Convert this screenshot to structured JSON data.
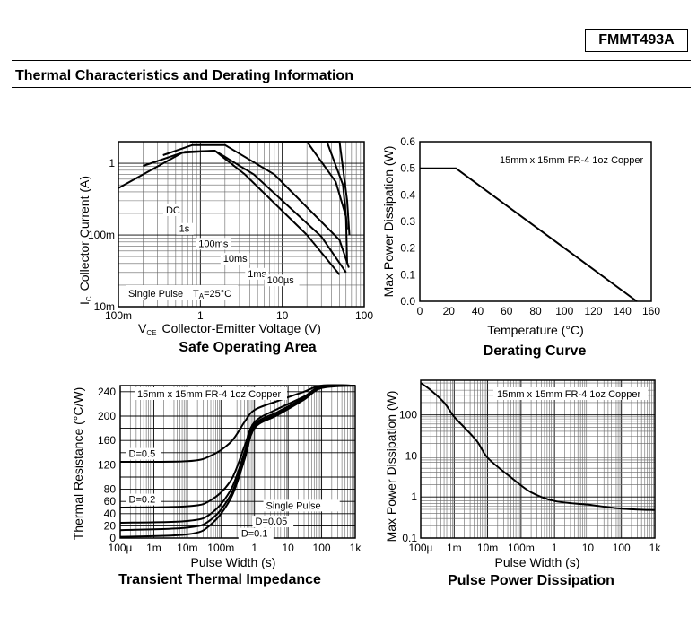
{
  "header": {
    "part_number": "FMMT493A",
    "section_title": "Thermal Characteristics and Derating Information"
  },
  "colors": {
    "line": "#000000",
    "grid": "#000000",
    "grid_minor": "#999999"
  },
  "chart_data": [
    {
      "type": "line",
      "title": "Safe Operating Area",
      "xlabel": "Collector-Emitter Voltage (V)",
      "xlabel_prefix": "V",
      "xlabel_sub": "CE",
      "ylabel": "Collector Current (A)",
      "ylabel_prefix": "I",
      "ylabel_sub": "C",
      "xscale": "log",
      "yscale": "log",
      "xlim": [
        0.1,
        100
      ],
      "ylim": [
        0.01,
        2
      ],
      "xticks": [
        {
          "v": 0.1,
          "l": "100m"
        },
        {
          "v": 1,
          "l": "1"
        },
        {
          "v": 10,
          "l": "10"
        },
        {
          "v": 100,
          "l": "100"
        }
      ],
      "yticks": [
        {
          "v": 0.01,
          "l": "10m"
        },
        {
          "v": 0.1,
          "l": "100m"
        },
        {
          "v": 1,
          "l": "1"
        }
      ],
      "annotation_left": "Single Pulse",
      "annotation_t": "T",
      "annotation_tsub": "A",
      "annotation_tval": "=25°C",
      "series": [
        {
          "label": "DC",
          "label_at": [
            0.38,
            0.2
          ],
          "points": [
            [
              0.1,
              0.45
            ],
            [
              0.6,
              1.4
            ],
            [
              1.5,
              1.5
            ],
            [
              3.5,
              0.7
            ],
            [
              20,
              0.1
            ],
            [
              50,
              0.028
            ]
          ]
        },
        {
          "label": "1s",
          "label_at": [
            0.55,
            0.11
          ],
          "points": [
            [
              0.2,
              0.92
            ],
            [
              0.65,
              1.45
            ],
            [
              1.5,
              1.5
            ],
            [
              4.5,
              0.7
            ],
            [
              30,
              0.095
            ],
            [
              60,
              0.03
            ]
          ]
        },
        {
          "label": "100ms",
          "label_at": [
            0.95,
            0.068
          ],
          "points": [
            [
              0.35,
              1.3
            ],
            [
              0.8,
              1.8
            ],
            [
              2,
              1.8
            ],
            [
              8,
              0.7
            ],
            [
              50,
              0.085
            ],
            [
              65,
              0.035
            ]
          ]
        },
        {
          "label": "10ms",
          "label_at": [
            1.9,
            0.042
          ],
          "points": [
            [
              0.75,
              2
            ],
            [
              20,
              2
            ],
            [
              45,
              0.55
            ],
            [
              60,
              0.18
            ],
            [
              62,
              0.04
            ]
          ]
        },
        {
          "label": "1ms",
          "label_at": [
            3.8,
            0.026
          ],
          "points": [
            [
              2,
              2
            ],
            [
              35,
              2
            ],
            [
              55,
              0.5
            ],
            [
              62,
              0.12
            ]
          ]
        },
        {
          "label": "100µs",
          "label_at": [
            6.5,
            0.021
          ],
          "points": [
            [
              6,
              2
            ],
            [
              50,
              2
            ],
            [
              62,
              0.3
            ],
            [
              66,
              0.1
            ]
          ]
        }
      ]
    },
    {
      "type": "line",
      "title": "Derating Curve",
      "xlabel": "Temperature (°C)",
      "ylabel": "Max Power Dissipation (W)",
      "xlim": [
        0,
        160
      ],
      "ylim": [
        0,
        0.6
      ],
      "xticks": [
        0,
        20,
        40,
        60,
        80,
        100,
        120,
        140,
        160
      ],
      "yticks": [
        "0.0",
        "0.1",
        "0.2",
        "0.3",
        "0.4",
        "0.5",
        "0.6"
      ],
      "annotation": "15mm x 15mm FR-4 1oz Copper",
      "series": [
        {
          "points": [
            [
              0,
              0.5
            ],
            [
              25,
              0.5
            ],
            [
              150,
              0
            ]
          ]
        }
      ]
    },
    {
      "type": "line",
      "title": "Transient Thermal Impedance",
      "xlabel": "Pulse Width (s)",
      "ylabel": "Thermal Resistance (°C/W)",
      "xscale": "log",
      "xlim": [
        0.0001,
        1000
      ],
      "ylim": [
        0,
        250
      ],
      "xticks": [
        {
          "v": 0.0001,
          "l": "100µ"
        },
        {
          "v": 0.001,
          "l": "1m"
        },
        {
          "v": 0.01,
          "l": "10m"
        },
        {
          "v": 0.1,
          "l": "100m"
        },
        {
          "v": 1,
          "l": "1"
        },
        {
          "v": 10,
          "l": "10"
        },
        {
          "v": 100,
          "l": "100"
        },
        {
          "v": 1000,
          "l": "1k"
        }
      ],
      "yticks": [
        0,
        20,
        40,
        60,
        80,
        120,
        160,
        200,
        240
      ],
      "annotation": "15mm x 15mm FR-4 1oz Copper",
      "series": [
        {
          "name": "D=0.5",
          "label_at": [
            0.00018,
            133
          ],
          "points": [
            [
              0.0001,
              125
            ],
            [
              0.01,
              126
            ],
            [
              0.05,
              135
            ],
            [
              0.2,
              158
            ],
            [
              0.5,
              190
            ],
            [
              1,
              210
            ],
            [
              5,
              225
            ],
            [
              30,
              240
            ],
            [
              100,
              250
            ],
            [
              1000,
              250
            ]
          ]
        },
        {
          "name": "D=0.2",
          "label_at": [
            0.00018,
            58
          ],
          "points": [
            [
              0.0001,
              50
            ],
            [
              0.01,
              52
            ],
            [
              0.05,
              62
            ],
            [
              0.2,
              95
            ],
            [
              0.5,
              150
            ],
            [
              1,
              190
            ],
            [
              5,
              212
            ],
            [
              30,
              232
            ],
            [
              100,
              249
            ],
            [
              1000,
              250
            ]
          ]
        },
        {
          "name": "D=0.1",
          "label_at": [
            0.4,
            2
          ],
          "points": [
            [
              0.0001,
              25
            ],
            [
              0.01,
              28
            ],
            [
              0.05,
              40
            ],
            [
              0.2,
              80
            ],
            [
              0.5,
              140
            ],
            [
              1,
              186
            ],
            [
              5,
              207
            ],
            [
              30,
              230
            ],
            [
              100,
              248
            ],
            [
              1000,
              250
            ]
          ]
        },
        {
          "name": "D=0.05",
          "label_at": [
            1.05,
            22
          ],
          "points": [
            [
              0.0001,
              13
            ],
            [
              0.01,
              17
            ],
            [
              0.05,
              30
            ],
            [
              0.2,
              72
            ],
            [
              0.5,
              133
            ],
            [
              1,
              183
            ],
            [
              5,
              204
            ],
            [
              30,
              228
            ],
            [
              100,
              247
            ],
            [
              1000,
              250
            ]
          ]
        },
        {
          "name": "Single Pulse",
          "label_at": [
            2.2,
            48
          ],
          "points": [
            [
              0.0001,
              2
            ],
            [
              0.01,
              6
            ],
            [
              0.05,
              22
            ],
            [
              0.2,
              66
            ],
            [
              0.5,
              128
            ],
            [
              1,
              180
            ],
            [
              5,
              202
            ],
            [
              30,
              227
            ],
            [
              100,
              246
            ],
            [
              1000,
              250
            ]
          ]
        }
      ]
    },
    {
      "type": "line",
      "title": "Pulse Power Dissipation",
      "xlabel": "Pulse Width (s)",
      "ylabel": "Max Power Dissipation (W)",
      "xscale": "log",
      "yscale": "log",
      "xlim": [
        0.0001,
        1000
      ],
      "ylim": [
        0.1,
        700
      ],
      "xticks": [
        {
          "v": 0.0001,
          "l": "100µ"
        },
        {
          "v": 0.001,
          "l": "1m"
        },
        {
          "v": 0.01,
          "l": "10m"
        },
        {
          "v": 0.1,
          "l": "100m"
        },
        {
          "v": 1,
          "l": "1"
        },
        {
          "v": 10,
          "l": "10"
        },
        {
          "v": 100,
          "l": "100"
        },
        {
          "v": 1000,
          "l": "1k"
        }
      ],
      "yticks": [
        {
          "v": 0.1,
          "l": "0.1"
        },
        {
          "v": 1,
          "l": "1"
        },
        {
          "v": 10,
          "l": "10"
        },
        {
          "v": 100,
          "l": "100"
        }
      ],
      "annotation": "15mm x 15mm FR-4 1oz Copper",
      "series": [
        {
          "points": [
            [
              0.0001,
              600
            ],
            [
              0.0002,
              400
            ],
            [
              0.0005,
              200
            ],
            [
              0.001,
              90
            ],
            [
              0.002,
              50
            ],
            [
              0.005,
              22
            ],
            [
              0.01,
              9
            ],
            [
              0.05,
              3
            ],
            [
              0.2,
              1.3
            ],
            [
              1,
              0.8
            ],
            [
              10,
              0.65
            ],
            [
              100,
              0.52
            ],
            [
              1000,
              0.48
            ]
          ]
        }
      ]
    }
  ]
}
